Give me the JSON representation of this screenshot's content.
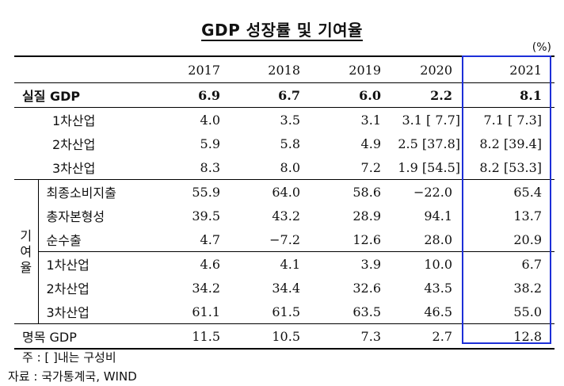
{
  "title": "GDP 성장률 및 기여율",
  "unit": "(%)",
  "years": [
    "2017",
    "2018",
    "2019",
    "2020",
    "2021"
  ],
  "real_gdp": {
    "label": "실질 GDP",
    "values": [
      "6.9",
      "6.7",
      "6.0",
      "2.2",
      "8.1"
    ]
  },
  "growth_rows": [
    {
      "label": "1차산업",
      "values": [
        "4.0",
        "3.5",
        "3.1",
        "3.1 [ 7.7]",
        "7.1 [ 7.3]"
      ]
    },
    {
      "label": "2차산업",
      "values": [
        "5.9",
        "5.8",
        "4.9",
        "2.5 [37.8]",
        "8.2 [39.4]"
      ]
    },
    {
      "label": "3차산업",
      "values": [
        "8.3",
        "8.0",
        "7.2",
        "1.9 [54.5]",
        "8.2 [53.3]"
      ]
    }
  ],
  "contribution_label": [
    "기",
    "여",
    "율"
  ],
  "contrib_demand": [
    {
      "label": "최종소비지출",
      "values": [
        "55.9",
        "64.0",
        "58.6",
        "−22.0",
        "65.4"
      ]
    },
    {
      "label": "총자본형성",
      "values": [
        "39.5",
        "43.2",
        "28.9",
        "94.1",
        "13.7"
      ]
    },
    {
      "label": "순수출",
      "values": [
        "4.7",
        "−7.2",
        "12.6",
        "28.0",
        "20.9"
      ]
    }
  ],
  "contrib_industry": [
    {
      "label": "1차산업",
      "values": [
        "4.6",
        "4.1",
        "3.9",
        "10.0",
        "6.7"
      ]
    },
    {
      "label": "2차산업",
      "values": [
        "34.2",
        "34.4",
        "32.6",
        "43.5",
        "38.2"
      ]
    },
    {
      "label": "3차산업",
      "values": [
        "61.1",
        "61.5",
        "63.5",
        "46.5",
        "55.0"
      ]
    }
  ],
  "nominal_gdp": {
    "label": "명목 GDP",
    "values": [
      "11.5",
      "10.5",
      "7.3",
      "2.7",
      "12.8"
    ]
  },
  "notes": {
    "note1": "주 : [ ]내는 구성비",
    "note2": "자료 : 국가통계국, WIND"
  },
  "colors": {
    "highlight_box": "#1d2fd8"
  }
}
